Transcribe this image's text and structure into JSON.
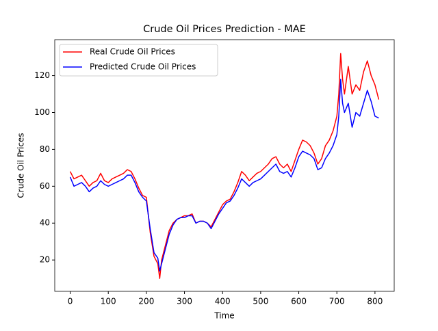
{
  "chart_data": {
    "type": "line",
    "title": "Crude Oil Prices Prediction - MAE",
    "x_label": "Time",
    "y_label": "Crude Oil Prices",
    "x": [
      0,
      10,
      20,
      30,
      40,
      50,
      60,
      70,
      80,
      90,
      100,
      110,
      120,
      130,
      140,
      150,
      160,
      170,
      180,
      190,
      200,
      210,
      220,
      230,
      235,
      240,
      250,
      260,
      270,
      280,
      290,
      300,
      310,
      320,
      330,
      340,
      350,
      360,
      370,
      380,
      390,
      400,
      410,
      420,
      430,
      440,
      450,
      460,
      470,
      480,
      490,
      500,
      510,
      520,
      530,
      540,
      550,
      560,
      570,
      580,
      590,
      600,
      610,
      620,
      630,
      640,
      650,
      660,
      670,
      680,
      690,
      700,
      705,
      710,
      715,
      720,
      730,
      740,
      750,
      760,
      770,
      780,
      790,
      800,
      810
    ],
    "series": [
      {
        "name": "Real Crude Oil Prices",
        "color": "#ff0000",
        "values": [
          68,
          64,
          65,
          66,
          63,
          60,
          62,
          63,
          67,
          63,
          62,
          64,
          65,
          66,
          67,
          69,
          68,
          64,
          59,
          55,
          54,
          35,
          22,
          18,
          10,
          20,
          28,
          36,
          40,
          42,
          43,
          44,
          44,
          45,
          40,
          41,
          41,
          40,
          38,
          42,
          46,
          50,
          52,
          53,
          57,
          62,
          68,
          66,
          63,
          65,
          67,
          68,
          70,
          72,
          75,
          76,
          72,
          70,
          72,
          68,
          74,
          80,
          85,
          84,
          82,
          78,
          72,
          75,
          82,
          85,
          90,
          98,
          110,
          132,
          118,
          110,
          125,
          110,
          115,
          112,
          122,
          128,
          120,
          115,
          107
        ]
      },
      {
        "name": "Predicted Crude Oil Prices",
        "color": "#0000ff",
        "values": [
          65,
          60,
          61,
          62,
          60,
          57,
          59,
          60,
          63,
          61,
          60,
          61,
          62,
          63,
          64,
          66,
          66,
          62,
          57,
          54,
          52,
          37,
          24,
          21,
          14,
          18,
          26,
          34,
          39,
          42,
          43,
          43,
          44,
          44,
          40,
          41,
          41,
          40,
          37,
          41,
          45,
          48,
          51,
          52,
          55,
          59,
          64,
          62,
          60,
          62,
          63,
          64,
          66,
          68,
          70,
          72,
          68,
          67,
          68,
          65,
          70,
          76,
          79,
          78,
          77,
          75,
          69,
          70,
          75,
          78,
          82,
          88,
          98,
          118,
          105,
          100,
          105,
          92,
          100,
          98,
          105,
          112,
          106,
          98,
          97
        ]
      }
    ],
    "xlim": [
      -40.5,
      850.5
    ],
    "xticks": [
      0,
      100,
      200,
      300,
      400,
      500,
      600,
      700,
      800
    ],
    "ylim": [
      3,
      139.5
    ],
    "yticks": [
      20,
      40,
      60,
      80,
      100,
      120
    ],
    "legend": "upper left"
  }
}
